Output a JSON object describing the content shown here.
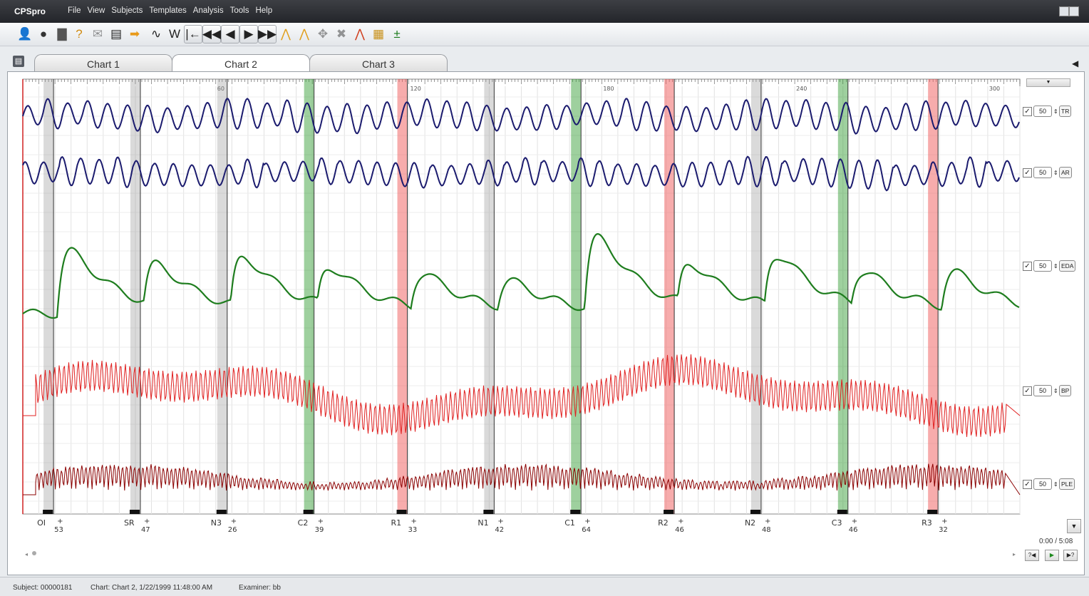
{
  "app": {
    "name": "CPSpro"
  },
  "menu": [
    "File",
    "View",
    "Subjects",
    "Templates",
    "Analysis",
    "Tools",
    "Help"
  ],
  "toolbar": [
    {
      "icon": "add-subject-icon",
      "glyph": "👤"
    },
    {
      "icon": "head-icon",
      "glyph": "●"
    },
    {
      "icon": "examinee-icon",
      "glyph": "▇"
    },
    {
      "icon": "questions-icon",
      "glyph": "?"
    },
    {
      "icon": "mail-icon",
      "glyph": "✉"
    },
    {
      "icon": "print-icon",
      "glyph": "▤"
    },
    {
      "icon": "export-icon",
      "glyph": "➡"
    },
    {
      "icon": "wave-single-icon",
      "glyph": "∿"
    },
    {
      "icon": "wave-double-icon",
      "glyph": "W"
    },
    {
      "icon": "go-start-icon",
      "glyph": "|←"
    },
    {
      "icon": "rewind-icon",
      "glyph": "◀◀"
    },
    {
      "icon": "step-back-icon",
      "glyph": "◀"
    },
    {
      "icon": "play-icon",
      "glyph": "▶"
    },
    {
      "icon": "fast-forward-icon",
      "glyph": "▶▶"
    },
    {
      "icon": "peak-icon",
      "glyph": "⋀"
    },
    {
      "icon": "peak-mark-icon",
      "glyph": "⋀"
    },
    {
      "icon": "move-icon",
      "glyph": "✥"
    },
    {
      "icon": "delete-mark-icon",
      "glyph": "✖"
    },
    {
      "icon": "peak-red-icon",
      "glyph": "⋀"
    },
    {
      "icon": "grid-icon",
      "glyph": "▦"
    },
    {
      "icon": "plus-minus-icon",
      "glyph": "±"
    }
  ],
  "tabs": [
    "Chart 1",
    "Chart 2",
    "Chart 3"
  ],
  "active_tab": 1,
  "channels": [
    {
      "label": "TR",
      "value": "50",
      "checked": true,
      "color": "#1b1b6e"
    },
    {
      "label": "AR",
      "value": "50",
      "checked": true,
      "color": "#1b1b6e"
    },
    {
      "label": "EDA",
      "value": "50",
      "checked": true,
      "color": "#1e7d1e"
    },
    {
      "label": "BP",
      "value": "50",
      "checked": true,
      "color": "#e02020"
    },
    {
      "label": "PLE",
      "value": "50",
      "checked": true,
      "color": "#8b0000"
    }
  ],
  "chart_data": {
    "type": "line",
    "title": "",
    "x_unit": "seconds",
    "xlim": [
      0,
      310
    ],
    "ruler_labels": [
      "60",
      "120",
      "180",
      "240",
      "300"
    ],
    "ruler_values": [
      60,
      120,
      180,
      240,
      300
    ],
    "series": [
      {
        "name": "TR",
        "color": "#1b1b6e"
      },
      {
        "name": "AR",
        "color": "#1b1b6e"
      },
      {
        "name": "EDA",
        "color": "#1e7d1e"
      },
      {
        "name": "BP",
        "color": "#e02020"
      },
      {
        "name": "PLE",
        "color": "#8b0000"
      }
    ],
    "questions": [
      {
        "label": "OI",
        "score": "53",
        "t": 8,
        "band": "gray"
      },
      {
        "label": "SR",
        "score": "47",
        "t": 35,
        "band": "gray"
      },
      {
        "label": "N3",
        "score": "26",
        "t": 62,
        "band": "gray"
      },
      {
        "label": "C2",
        "score": "39",
        "t": 89,
        "band": "green"
      },
      {
        "label": "R1",
        "score": "33",
        "t": 118,
        "band": "red"
      },
      {
        "label": "N1",
        "score": "42",
        "t": 145,
        "band": "gray"
      },
      {
        "label": "C1",
        "score": "64",
        "t": 172,
        "band": "green"
      },
      {
        "label": "R2",
        "score": "46",
        "t": 201,
        "band": "red"
      },
      {
        "label": "N2",
        "score": "48",
        "t": 228,
        "band": "gray"
      },
      {
        "label": "C3",
        "score": "46",
        "t": 255,
        "band": "green"
      },
      {
        "label": "R3",
        "score": "32",
        "t": 283,
        "band": "red"
      }
    ]
  },
  "time_readout": "0:00 / 5:08",
  "nav_buttons": [
    "?◀",
    "▶",
    "▶?"
  ],
  "status": {
    "subject": "Subject: 00000181",
    "chart": "Chart: Chart 2, 1/22/1999 11:48:00 AM",
    "examiner": "Examiner: bb"
  }
}
